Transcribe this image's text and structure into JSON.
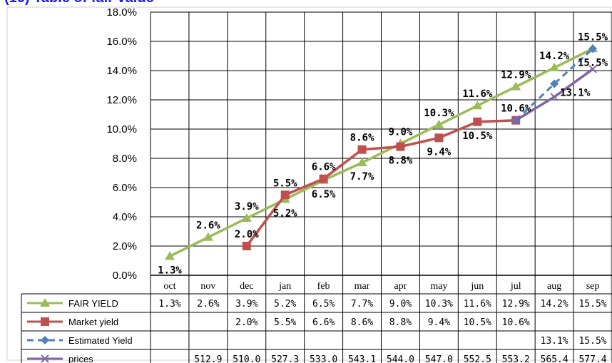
{
  "caption": "(16) Table of fair value",
  "chart_data": {
    "type": "line",
    "categories": [
      "oct",
      "nov",
      "dec",
      "jan",
      "feb",
      "mar",
      "apr",
      "may",
      "jun",
      "jul",
      "aug",
      "sep"
    ],
    "ylim": [
      0,
      18
    ],
    "yticks": [
      "0.0%",
      "2.0%",
      "4.0%",
      "6.0%",
      "8.0%",
      "10.0%",
      "12.0%",
      "14.0%",
      "16.0%",
      "18.0%"
    ],
    "grid": true,
    "legend": "data-table-left",
    "series": [
      {
        "name": "FAIR YIELD",
        "color": "#9bbb59",
        "marker": "triangle",
        "dash": false,
        "values": [
          1.3,
          2.6,
          3.9,
          5.2,
          6.5,
          7.7,
          9.0,
          10.3,
          11.6,
          12.9,
          14.2,
          15.5
        ],
        "table": [
          "1.3%",
          "2.6%",
          "3.9%",
          "5.2%",
          "6.5%",
          "7.7%",
          "9.0%",
          "10.3%",
          "11.6%",
          "12.9%",
          "14.2%",
          "15.5%"
        ]
      },
      {
        "name": "Market yield",
        "color": "#c0504d",
        "marker": "square",
        "dash": false,
        "values": [
          null,
          null,
          2.0,
          5.5,
          6.6,
          8.6,
          8.8,
          9.4,
          10.5,
          10.6,
          null,
          null
        ],
        "table": [
          "",
          "",
          "2.0%",
          "5.5%",
          "6.6%",
          "8.6%",
          "8.8%",
          "9.4%",
          "10.5%",
          "10.6%",
          "",
          ""
        ]
      },
      {
        "name": "Estimated Yield",
        "color": "#4f81bd",
        "marker": "diamond",
        "dash": true,
        "values": [
          null,
          null,
          null,
          null,
          null,
          null,
          null,
          null,
          null,
          10.6,
          13.1,
          15.5
        ],
        "table": [
          "",
          "",
          "",
          "",
          "",
          "",
          "",
          "",
          "",
          "",
          "13.1%",
          "15.5%"
        ]
      },
      {
        "name": "prices",
        "color": "#8064a2",
        "marker": "x",
        "dash": false,
        "values": [
          null,
          null,
          null,
          null,
          null,
          null,
          null,
          null,
          null,
          10.6,
          12.2,
          14.1
        ],
        "table": [
          "",
          "512.9",
          "510.0",
          "527.3",
          "533.0",
          "543.1",
          "544.0",
          "547.0",
          "552.5",
          "553.2",
          "565.4",
          "577.4"
        ]
      }
    ],
    "point_labels": [
      {
        "cat": 0,
        "value": 1.3,
        "text": "1.3%",
        "pos": "below"
      },
      {
        "cat": 1,
        "value": 2.6,
        "text": "2.6%",
        "pos": "above"
      },
      {
        "cat": 2,
        "value": 3.9,
        "text": "3.9%",
        "pos": "above"
      },
      {
        "cat": 2,
        "value": 2.0,
        "text": "2.0%",
        "pos": "above"
      },
      {
        "cat": 3,
        "value": 5.5,
        "text": "5.5%",
        "pos": "above"
      },
      {
        "cat": 3,
        "value": 5.2,
        "text": "5.2%",
        "pos": "below"
      },
      {
        "cat": 4,
        "value": 6.6,
        "text": "6.6%",
        "pos": "above"
      },
      {
        "cat": 4,
        "value": 6.5,
        "text": "6.5%",
        "pos": "below"
      },
      {
        "cat": 5,
        "value": 8.6,
        "text": "8.6%",
        "pos": "above"
      },
      {
        "cat": 5,
        "value": 7.7,
        "text": "7.7%",
        "pos": "below"
      },
      {
        "cat": 6,
        "value": 9.0,
        "text": "9.0%",
        "pos": "above"
      },
      {
        "cat": 6,
        "value": 8.8,
        "text": "8.8%",
        "pos": "below"
      },
      {
        "cat": 7,
        "value": 10.3,
        "text": "10.3%",
        "pos": "above"
      },
      {
        "cat": 7,
        "value": 9.4,
        "text": "9.4%",
        "pos": "below"
      },
      {
        "cat": 8,
        "value": 11.6,
        "text": "11.6%",
        "pos": "above"
      },
      {
        "cat": 8,
        "value": 10.5,
        "text": "10.5%",
        "pos": "below"
      },
      {
        "cat": 9,
        "value": 12.9,
        "text": "12.9%",
        "pos": "above"
      },
      {
        "cat": 9,
        "value": 10.6,
        "text": "10.6%",
        "pos": "above"
      },
      {
        "cat": 10,
        "value": 14.2,
        "text": "14.2%",
        "pos": "above"
      },
      {
        "cat": 10,
        "value": 13.1,
        "text": "13.1%",
        "pos": "right"
      },
      {
        "cat": 11,
        "value": 15.5,
        "text": "15.5%",
        "pos": "above"
      },
      {
        "cat": 11,
        "value": 15.5,
        "text": "15.5%",
        "pos": "below"
      }
    ]
  }
}
